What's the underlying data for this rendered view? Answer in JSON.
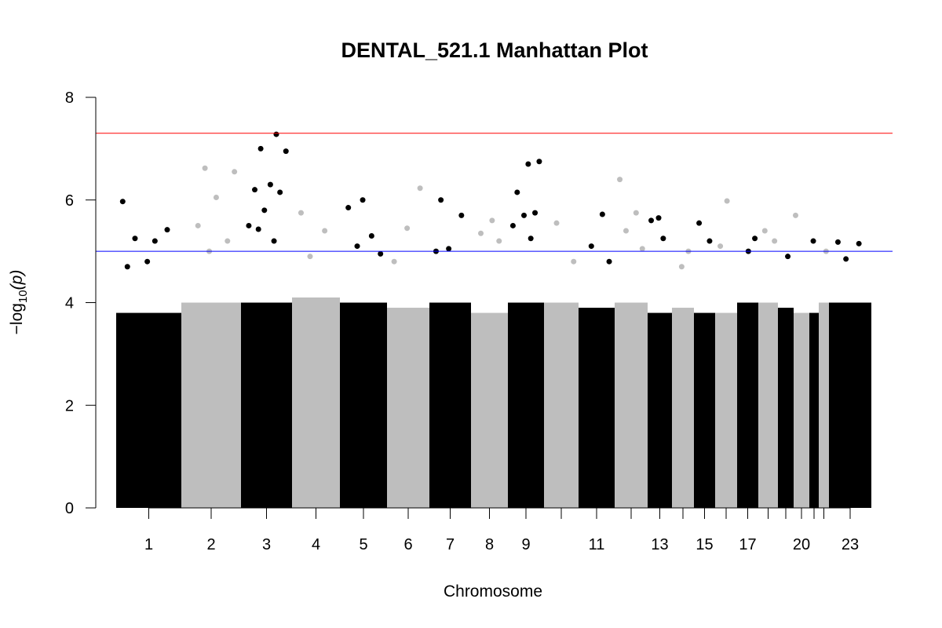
{
  "chart_data": {
    "type": "manhattan",
    "title": "DENTAL_521.1 Manhattan Plot",
    "xlabel": "Chromosome",
    "ylabel": [
      "−log",
      "10",
      "(p)"
    ],
    "categories": [
      "1",
      "2",
      "3",
      "4",
      "5",
      "6",
      "7",
      "8",
      "9",
      null,
      "11",
      null,
      "13",
      null,
      "15",
      null,
      "17",
      null,
      null,
      "20",
      null,
      null,
      "23"
    ],
    "colors": [
      "#000000",
      "#bebebe"
    ],
    "values": [
      3.8,
      4.0,
      4.0,
      4.1,
      4.0,
      3.9,
      4.0,
      3.8,
      4.0,
      4.0,
      3.9,
      4.0,
      3.8,
      3.9,
      3.8,
      3.8,
      4.0,
      4.0,
      3.9,
      3.8,
      3.8,
      4.0,
      4.0
    ],
    "peaks": [
      [
        5.97,
        5.2,
        5.25,
        5.42,
        4.8,
        4.7
      ],
      [
        6.62,
        6.55,
        6.05,
        5.5,
        5.2,
        5.0
      ],
      [
        7.28,
        7.0,
        6.95,
        6.3,
        6.2,
        6.15,
        5.8,
        5.5,
        5.2,
        5.43
      ],
      [
        5.75,
        5.4,
        4.9
      ],
      [
        6.0,
        5.85,
        5.3,
        5.1,
        4.95
      ],
      [
        6.23,
        5.45,
        4.8
      ],
      [
        6.0,
        5.7,
        5.05,
        5.0
      ],
      [
        5.6,
        5.35,
        5.2
      ],
      [
        6.75,
        6.7,
        6.15,
        5.75,
        5.7,
        5.5,
        5.25
      ],
      [
        5.55,
        4.8
      ],
      [
        5.72,
        5.1,
        4.8
      ],
      [
        6.4,
        5.75,
        5.4,
        5.05
      ],
      [
        5.65,
        5.6,
        5.25
      ],
      [
        5.0,
        4.7
      ],
      [
        5.55,
        5.2
      ],
      [
        5.98,
        5.1
      ],
      [
        5.25,
        5.0
      ],
      [
        5.4,
        5.2
      ],
      [
        4.9
      ],
      [
        5.7
      ],
      [
        5.2
      ],
      [
        5.0
      ],
      [
        5.18,
        5.15,
        4.85
      ]
    ],
    "hlines": [
      {
        "value": 7.3,
        "color": "#ff0000"
      },
      {
        "value": 5,
        "color": "#0000ff"
      }
    ],
    "ylim": [
      0,
      8
    ],
    "yticks": [
      0,
      2,
      4,
      6,
      8
    ]
  }
}
